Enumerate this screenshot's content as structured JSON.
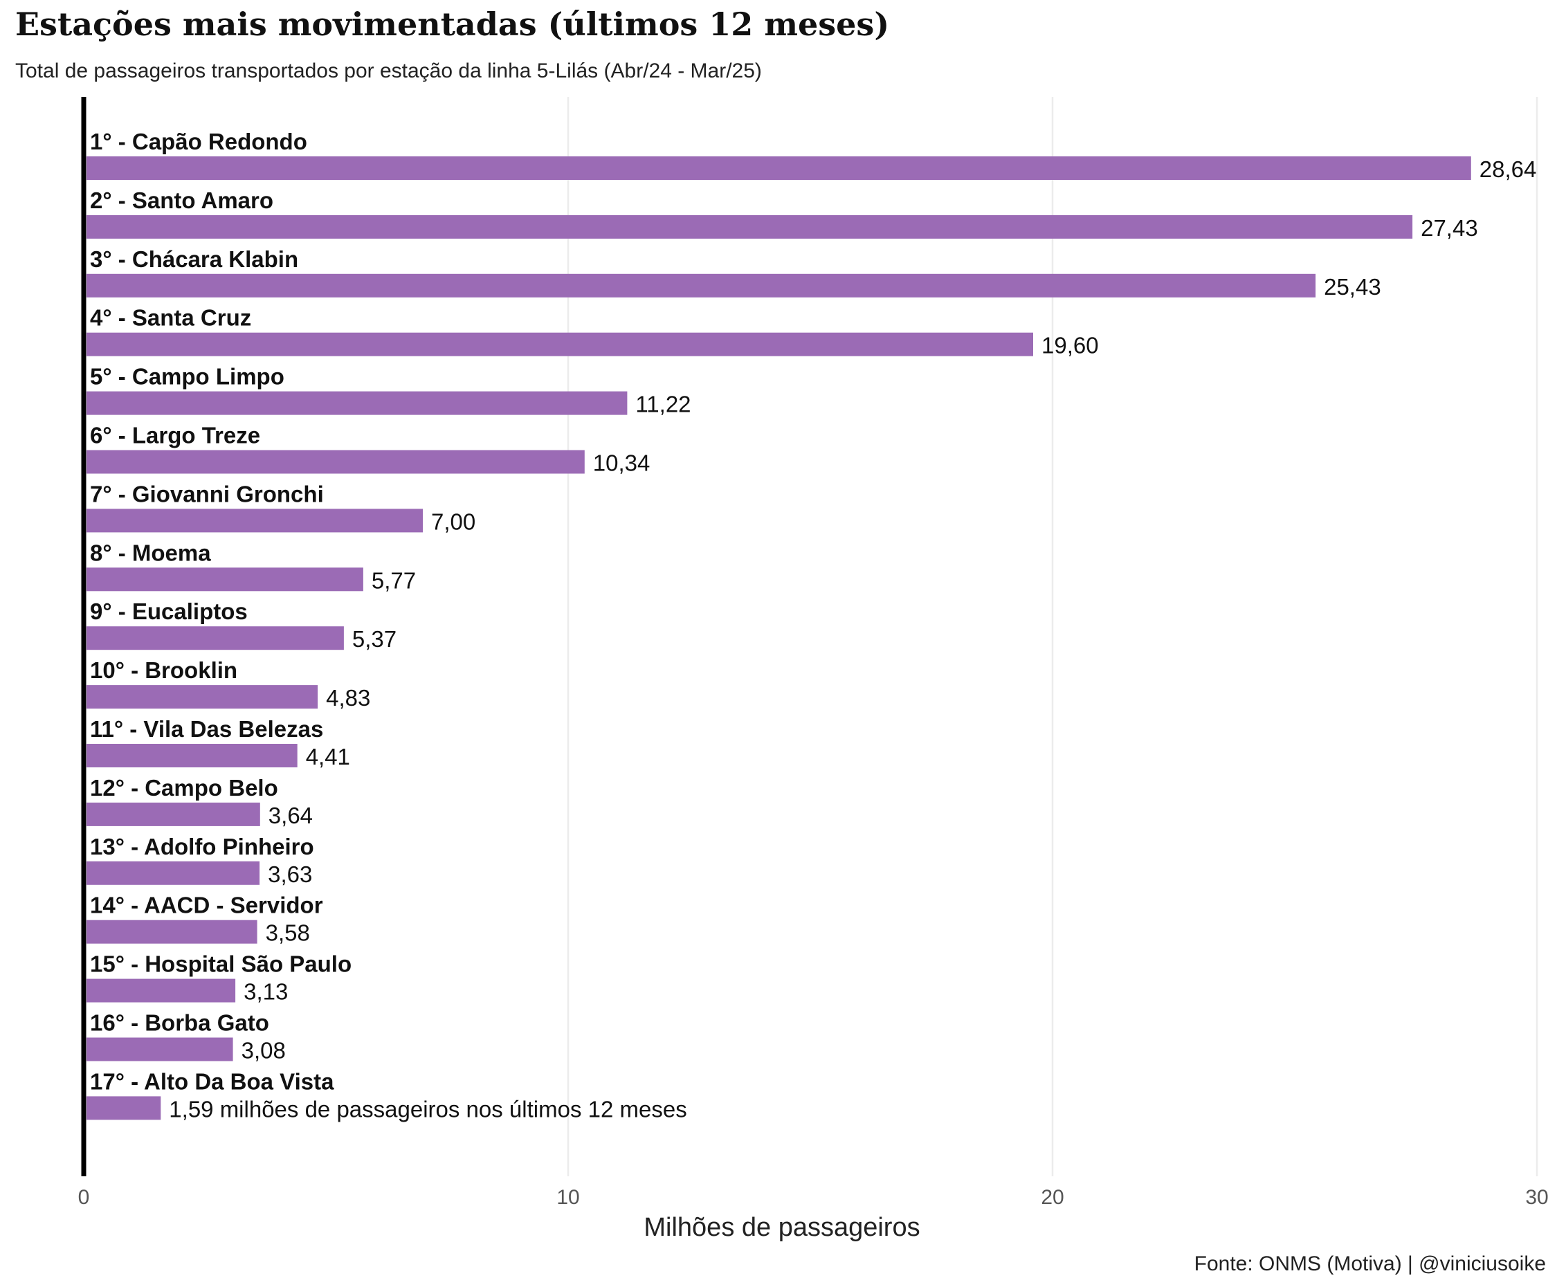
{
  "chart_data": {
    "type": "bar",
    "orientation": "horizontal",
    "title": "Estações mais movimentadas (últimos 12 meses)",
    "subtitle": "Total de passageiros transportados por estação da linha 5-Lilás (Abr/24 - Mar/25)",
    "xlabel": "Milhões de passageiros",
    "ylabel": "",
    "xlim": [
      0,
      30
    ],
    "xticks": [
      "0",
      "10",
      "20",
      "30"
    ],
    "grid": true,
    "bar_color": "#9b6bb5",
    "categories": [
      "1° - Capão Redondo",
      "2° - Santo Amaro",
      "3° - Chácara Klabin",
      "4° - Santa Cruz",
      "5° - Campo Limpo",
      "6° - Largo Treze",
      "7° - Giovanni Gronchi",
      "8° - Moema",
      "9° - Eucaliptos",
      "10° - Brooklin",
      "11° - Vila Das Belezas",
      "12° - Campo Belo",
      "13° - Adolfo Pinheiro",
      "14° - AACD - Servidor",
      "15° - Hospital São Paulo",
      "16° - Borba Gato",
      "17° - Alto Da Boa Vista"
    ],
    "values": [
      28.64,
      27.43,
      25.43,
      19.6,
      11.22,
      10.34,
      7.0,
      5.77,
      5.37,
      4.83,
      4.41,
      3.64,
      3.63,
      3.58,
      3.13,
      3.08,
      1.59
    ],
    "value_labels": [
      "28,64",
      "27,43",
      "25,43",
      "19,60",
      "11,22",
      "10,34",
      "7,00",
      "5,77",
      "5,37",
      "4,83",
      "4,41",
      "3,64",
      "3,63",
      "3,58",
      "3,13",
      "3,08",
      "1,59 milhões de passageiros nos últimos 12 meses"
    ],
    "source": "Fonte: ONMS (Motiva) | @viniciusoike"
  }
}
